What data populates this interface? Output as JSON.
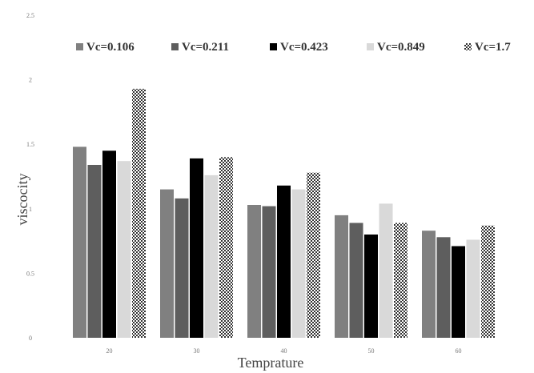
{
  "chart_data": {
    "type": "bar",
    "title": "",
    "xlabel": "Temprature",
    "ylabel": "viscocity",
    "categories": [
      "20",
      "30",
      "40",
      "50",
      "60"
    ],
    "y_ticks": [
      "0",
      "0.5",
      "1",
      "1.5",
      "2",
      "2.5"
    ],
    "ylim": [
      0,
      2.5
    ],
    "grid": false,
    "legend_position": "top",
    "series": [
      {
        "name": "Vc=0.106",
        "color": "#808080",
        "pattern": "solid",
        "values": [
          1.48,
          1.15,
          1.03,
          0.95,
          0.83
        ]
      },
      {
        "name": "Vc=0.211",
        "color": "#5e5e5e",
        "pattern": "solid",
        "values": [
          1.34,
          1.08,
          1.02,
          0.89,
          0.78
        ]
      },
      {
        "name": "Vc=0.423",
        "color": "#000000",
        "pattern": "solid",
        "values": [
          1.45,
          1.39,
          1.18,
          0.8,
          0.71
        ]
      },
      {
        "name": "Vc=0.849",
        "color": "#d9d9d9",
        "pattern": "solid",
        "values": [
          1.37,
          1.26,
          1.15,
          1.04,
          0.76
        ]
      },
      {
        "name": "Vc=1.7",
        "color": "#333333",
        "pattern": "checker",
        "values": [
          1.93,
          1.4,
          1.28,
          0.89,
          0.87
        ]
      }
    ]
  }
}
